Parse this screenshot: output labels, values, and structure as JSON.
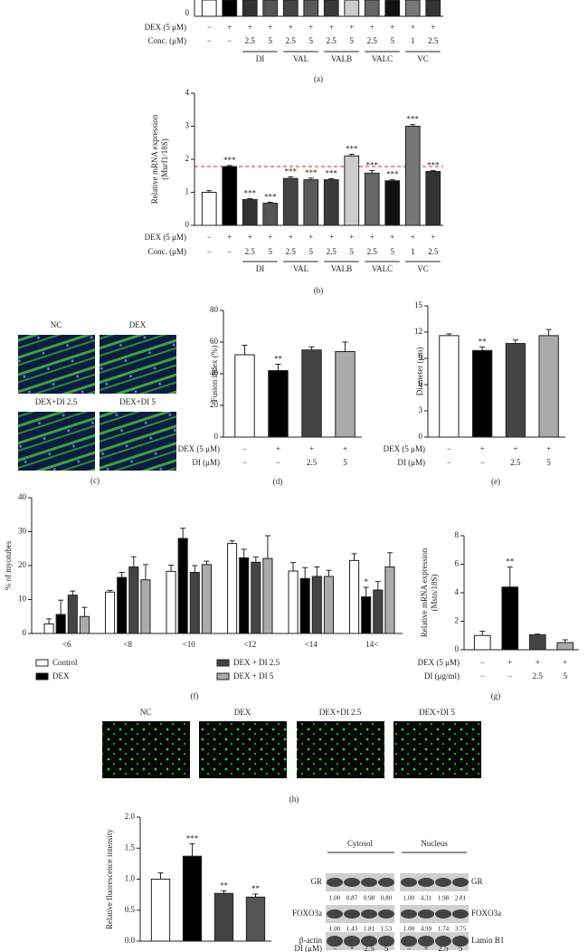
{
  "panel_a": {
    "ytick_label": "0",
    "panel_label": "(a)",
    "treatments": [
      {
        "label": "DEX (5 μM)",
        "cells": [
          "−",
          "+",
          "+",
          "+",
          "+",
          "+",
          "+",
          "+",
          "+",
          "+",
          "+",
          "+"
        ]
      },
      {
        "label": "Conc. (μM)",
        "cells": [
          "−",
          "−",
          "2.5",
          "5",
          "2.5",
          "5",
          "2.5",
          "5",
          "2.5",
          "5",
          "1",
          "2.5"
        ]
      }
    ],
    "groups": [
      "DI",
      "VAL",
      "VALB",
      "VALC",
      "VC"
    ]
  },
  "chart_data": [
    {
      "type": "bar",
      "panel_label": "(b)",
      "ylabel": [
        "Relative mRNA expression",
        "(Murf1/18S)"
      ],
      "ylim": [
        0,
        4
      ],
      "yticks": [
        0,
        1,
        2,
        3,
        4
      ],
      "values": [
        1.0,
        1.78,
        0.78,
        0.67,
        1.42,
        1.38,
        1.38,
        2.1,
        1.58,
        1.35,
        3.0,
        1.63
      ],
      "errors": [
        0.05,
        0.03,
        0.03,
        0.03,
        0.05,
        0.05,
        0.03,
        0.05,
        0.08,
        0.03,
        0.05,
        0.03
      ],
      "colors": [
        "#ffffff",
        "#000000",
        "#333333",
        "#555555",
        "#444444",
        "#5a5a5a",
        "#3a3a3a",
        "#cccccc",
        "#666666",
        "#111111",
        "#777777",
        "#333333"
      ],
      "annotations": [
        null,
        "***",
        "***",
        "***",
        "***",
        "***",
        "***",
        "***",
        "***",
        "***",
        "***",
        "***"
      ],
      "reference_line": {
        "value": 1.78,
        "color": "#d62728"
      },
      "treatments": [
        {
          "label": "DEX (5 μM)",
          "cells": [
            "−",
            "+",
            "+",
            "+",
            "+",
            "+",
            "+",
            "+",
            "+",
            "+",
            "+",
            "+"
          ]
        },
        {
          "label": "Conc. (μM)",
          "cells": [
            "−",
            "−",
            "2.5",
            "5",
            "2.5",
            "5",
            "2.5",
            "5",
            "2.5",
            "5",
            "1",
            "2.5"
          ]
        }
      ],
      "groups": [
        "DI",
        "VAL",
        "VALB",
        "VALC",
        "VC"
      ]
    },
    {
      "type": "bar",
      "panel_label": "(d)",
      "ylabel": [
        "Fusion index (%)"
      ],
      "ylim": [
        0,
        80
      ],
      "yticks": [
        0,
        20,
        40,
        60,
        80
      ],
      "values": [
        52,
        42,
        55,
        54
      ],
      "errors": [
        6,
        4,
        2,
        6
      ],
      "colors": [
        "#ffffff",
        "#000000",
        "#444444",
        "#aaaaaa"
      ],
      "annotations": [
        null,
        "**",
        null,
        null
      ],
      "treatments": [
        {
          "label": "DEX (5 μM)",
          "cells": [
            "−",
            "+",
            "+",
            "+"
          ]
        },
        {
          "label": "DI (μM)",
          "cells": [
            "−",
            "−",
            "2.5",
            "5"
          ]
        }
      ]
    },
    {
      "type": "bar",
      "panel_label": "(e)",
      "ylabel": [
        "Diameter (μm)"
      ],
      "ylim": [
        0,
        15
      ],
      "yticks": [
        0,
        3,
        6,
        9,
        12,
        15
      ],
      "values": [
        11.6,
        9.9,
        10.7,
        11.6
      ],
      "errors": [
        0.2,
        0.4,
        0.4,
        0.7
      ],
      "colors": [
        "#ffffff",
        "#000000",
        "#444444",
        "#aaaaaa"
      ],
      "annotations": [
        null,
        "**",
        null,
        null
      ],
      "treatments": [
        {
          "label": "DEX (5 μM)",
          "cells": [
            "−",
            "+",
            "+",
            "+"
          ]
        },
        {
          "label": "DI (μM)",
          "cells": [
            "−",
            "−",
            "2.5",
            "5"
          ]
        }
      ]
    },
    {
      "type": "grouped_bar",
      "panel_label": "(f)",
      "ylabel": [
        "% of myotubes"
      ],
      "ylim": [
        0,
        40
      ],
      "yticks": [
        0,
        10,
        20,
        30,
        40
      ],
      "categories": [
        "<6",
        "<8",
        "<10",
        "<12",
        "<14",
        "14<"
      ],
      "series": [
        {
          "name": "Control",
          "color": "#ffffff",
          "values": [
            2.8,
            12.2,
            18.3,
            26.5,
            18.4,
            21.5
          ],
          "errors": [
            1.5,
            0.5,
            1.8,
            0.8,
            2.5,
            2.0
          ]
        },
        {
          "name": "DEX",
          "color": "#000000",
          "values": [
            5.6,
            16.5,
            28.0,
            22.3,
            16.2,
            10.8
          ],
          "errors": [
            4.2,
            1.5,
            3.0,
            2.5,
            3.2,
            2.8
          ],
          "annotations": [
            null,
            null,
            null,
            null,
            null,
            "*"
          ]
        },
        {
          "name": "DEX + DI 2.5",
          "color": "#444444",
          "values": [
            11.3,
            19.6,
            18.0,
            21.0,
            16.8,
            12.8
          ],
          "errors": [
            1.2,
            3.0,
            2.0,
            1.5,
            2.8,
            2.5
          ]
        },
        {
          "name": "DEX + DI 5",
          "color": "#aaaaaa",
          "values": [
            5.0,
            15.8,
            20.3,
            22.1,
            16.8,
            19.6
          ],
          "errors": [
            2.7,
            4.5,
            1.0,
            6.7,
            1.8,
            4.2
          ]
        }
      ]
    },
    {
      "type": "bar",
      "panel_label": "(g)",
      "ylabel": [
        "Relative mRNA expression",
        "(Mstn/18S)"
      ],
      "ylim": [
        0,
        8
      ],
      "yticks": [
        0,
        2,
        4,
        6,
        8
      ],
      "values": [
        1.0,
        4.4,
        1.05,
        0.5
      ],
      "errors": [
        0.3,
        1.4,
        0.05,
        0.2
      ],
      "colors": [
        "#ffffff",
        "#000000",
        "#444444",
        "#aaaaaa"
      ],
      "annotations": [
        null,
        "**",
        null,
        null
      ],
      "treatments": [
        {
          "label": "DEX (5 μM)",
          "cells": [
            "−",
            "+",
            "+",
            "+"
          ]
        },
        {
          "label": "DI (μg/ml)",
          "cells": [
            "−",
            "−",
            "2.5",
            "5"
          ]
        }
      ]
    },
    {
      "type": "bar",
      "ylabel": [
        "Relative fluorescence intensity"
      ],
      "ylim": [
        0,
        2
      ],
      "yticks": [
        {
          "value": 0,
          "label": "0.0"
        },
        {
          "value": 0.5,
          "label": "0.5"
        },
        {
          "value": 1,
          "label": "1.0"
        },
        {
          "value": 1.5,
          "label": "1.5"
        },
        {
          "value": 2,
          "label": "2.0"
        }
      ],
      "values": [
        1.0,
        1.37,
        0.77,
        0.71
      ],
      "errors": [
        0.1,
        0.2,
        0.04,
        0.05
      ],
      "colors": [
        "#ffffff",
        "#000000",
        "#444444",
        "#555555"
      ],
      "annotations": [
        null,
        "***",
        "**",
        "**"
      ]
    }
  ],
  "panel_c": {
    "labels": [
      "NC",
      "DEX",
      "DEX+DI 2.5",
      "DEX+DI 5"
    ],
    "panel_label": "(c)"
  },
  "panel_h": {
    "labels": [
      "NC",
      "DEX",
      "DEX+DI 2.5",
      "DEX+DI 5"
    ],
    "panel_label": "(h)"
  },
  "blot": {
    "titles": [
      "Cytosol",
      "Nucleus"
    ],
    "left_labels": [
      "GR",
      "FOXO3a",
      "β-actin"
    ],
    "right_labels": [
      "GR",
      "FOXO3a",
      "Lamin B1"
    ],
    "quantification": [
      {
        "cytosol": [
          "1.00",
          "0.87",
          "0.98",
          "0.80"
        ],
        "nucleus": [
          "1.00",
          "4.31",
          "1.98",
          "2.81"
        ]
      },
      {
        "cytosol": [
          "1.00",
          "1.43",
          "1.81",
          "1.53"
        ],
        "nucleus": [
          "1.00",
          "4.99",
          "1.74",
          "3.75"
        ]
      }
    ],
    "lane_label": "DI (μM)",
    "lanes": [
      "−",
      "+",
      "2.5",
      "5",
      "−",
      "+",
      "2.5",
      "5"
    ]
  }
}
